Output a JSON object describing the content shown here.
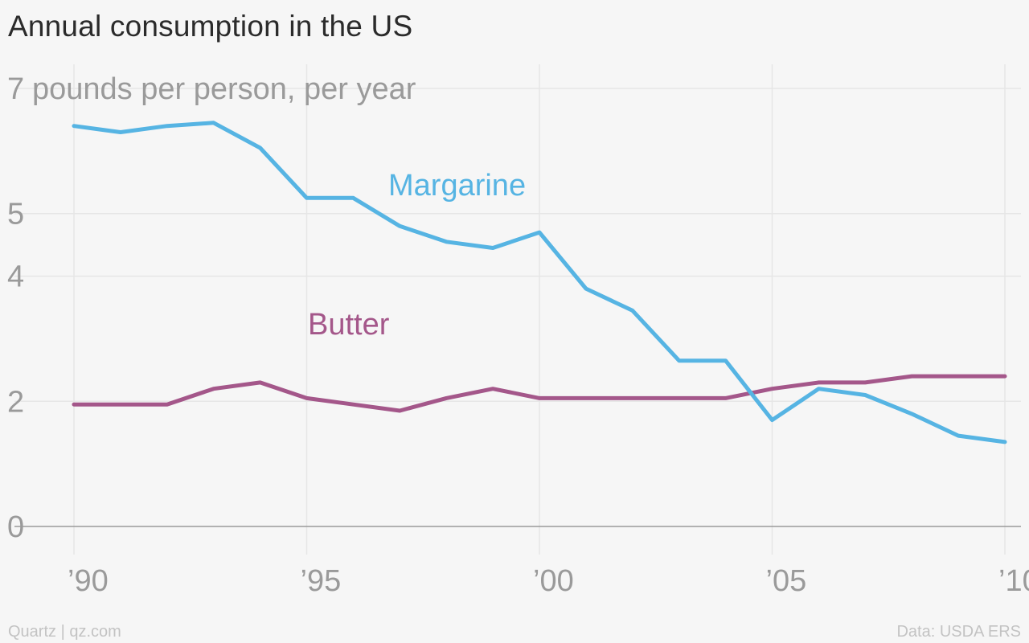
{
  "title": "Annual consumption in the US",
  "footer": {
    "source_left": "Quartz | qz.com",
    "source_right": "Data: USDA ERS"
  },
  "colors": {
    "margarine": "#56b4e3",
    "butter": "#a4578a",
    "grid": "#e6e6e6",
    "axis": "#9a9a9a",
    "tick_text": "#9a9a9a"
  },
  "chart_data": {
    "type": "line",
    "ylabel": "pounds per person, per year",
    "ylim": [
      0,
      7
    ],
    "y_ticks": [
      0,
      2,
      4,
      5,
      7
    ],
    "y_tick_labels": [
      "0",
      "2",
      "4",
      "5",
      "7"
    ],
    "x_ticks": [
      1990,
      1995,
      2000,
      2005,
      2010
    ],
    "x_tick_labels": [
      "’90",
      "’95",
      "’00",
      "’05",
      "’10"
    ],
    "grid": true,
    "legend": "inline labels on lines",
    "x": [
      1990,
      1991,
      1992,
      1993,
      1994,
      1995,
      1996,
      1997,
      1998,
      1999,
      2000,
      2001,
      2002,
      2003,
      2004,
      2005,
      2006,
      2007,
      2008,
      2009,
      2010
    ],
    "series": [
      {
        "name": "Margarine",
        "key": "margarine",
        "values": [
          6.4,
          6.3,
          6.4,
          6.45,
          6.05,
          5.25,
          5.25,
          4.8,
          4.55,
          4.45,
          4.7,
          3.8,
          3.45,
          2.65,
          2.65,
          1.7,
          2.2,
          2.1,
          1.8,
          1.45,
          1.35
        ]
      },
      {
        "name": "Butter",
        "key": "butter",
        "values": [
          1.95,
          1.95,
          1.95,
          2.2,
          2.3,
          2.05,
          1.95,
          1.85,
          2.05,
          2.2,
          2.05,
          2.05,
          2.05,
          2.05,
          2.05,
          2.2,
          2.3,
          2.3,
          2.4,
          2.4,
          2.4
        ]
      }
    ]
  }
}
